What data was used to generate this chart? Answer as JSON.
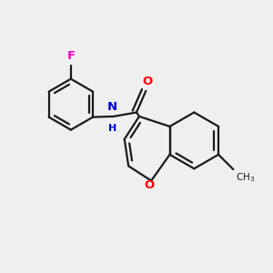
{
  "bg_color": "#efefef",
  "bond_color": "#1a1a1a",
  "F_color": "#ff00cc",
  "O_color": "#ff0000",
  "N_color": "#0000dd",
  "lw": 1.6,
  "figsize": [
    3.0,
    3.0
  ],
  "dpi": 100,
  "xlim": [
    0,
    10
  ],
  "ylim": [
    0,
    10
  ]
}
